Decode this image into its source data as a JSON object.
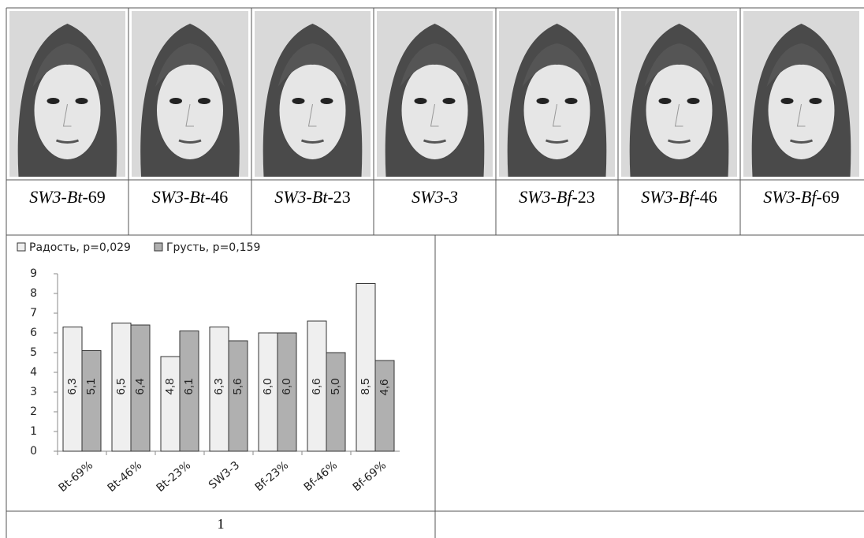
{
  "photos": {
    "captions": [
      [
        "SW3-Bt-",
        "69"
      ],
      [
        "SW3-Bt-",
        "46"
      ],
      [
        "SW3-Bt-",
        "23"
      ],
      [
        "SW3-3"
      ],
      [
        "SW3-Bf-",
        "23"
      ],
      [
        "SW3-Bf-",
        "46"
      ],
      [
        "SW3-Bf-",
        "69"
      ]
    ]
  },
  "chart_data": {
    "type": "bar",
    "categories": [
      "Bt-69%",
      "Bt-46%",
      "Bt-23%",
      "SW3-3",
      "Bf-23%",
      "Bf-46%",
      "Bf-69%"
    ],
    "series": [
      {
        "name": "Радость, p=0,029",
        "color": "#efefef",
        "values": [
          6.3,
          6.5,
          4.8,
          6.3,
          6.0,
          6.6,
          8.5
        ],
        "value_labels": [
          "6,3",
          "6,5",
          "4,8",
          "6,3",
          "6,0",
          "6,6",
          "8,5"
        ]
      },
      {
        "name": "Грусть, p=0,159",
        "color": "#b0b0b0",
        "values": [
          5.1,
          6.4,
          6.1,
          5.6,
          6.0,
          5.0,
          4.6
        ],
        "value_labels": [
          "5,1",
          "6,4",
          "6,1",
          "5,6",
          "6,0",
          "5,0",
          "4,6"
        ]
      }
    ],
    "ylim": [
      0,
      9
    ],
    "yticks": [
      0,
      1,
      2,
      3,
      4,
      5,
      6,
      7,
      8,
      9
    ]
  },
  "footer": {
    "label": "1"
  }
}
